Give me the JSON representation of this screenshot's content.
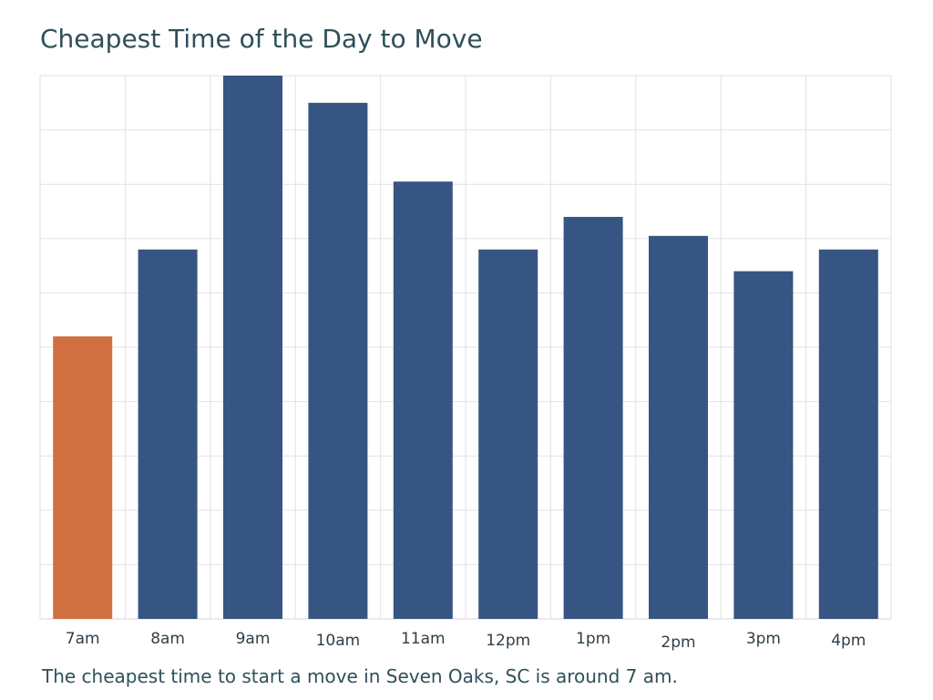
{
  "chart_data": {
    "type": "bar",
    "title": "Cheapest Time of the Day to Move",
    "caption": "The cheapest time to start a move in Seven Oaks, SC is around 7 am.",
    "categories": [
      "7am",
      "8am",
      "9am",
      "10am",
      "11am",
      "12pm",
      "1pm",
      "2pm",
      "3pm",
      "4pm"
    ],
    "values": [
      52,
      68,
      100,
      95,
      80.5,
      68,
      74,
      70.5,
      64,
      68
    ],
    "highlight_index": 0,
    "highlight_color": "#d07040",
    "bar_color": "#375583",
    "ylim": [
      0,
      100
    ],
    "grid": true,
    "y_tick_labels_shown": false
  }
}
